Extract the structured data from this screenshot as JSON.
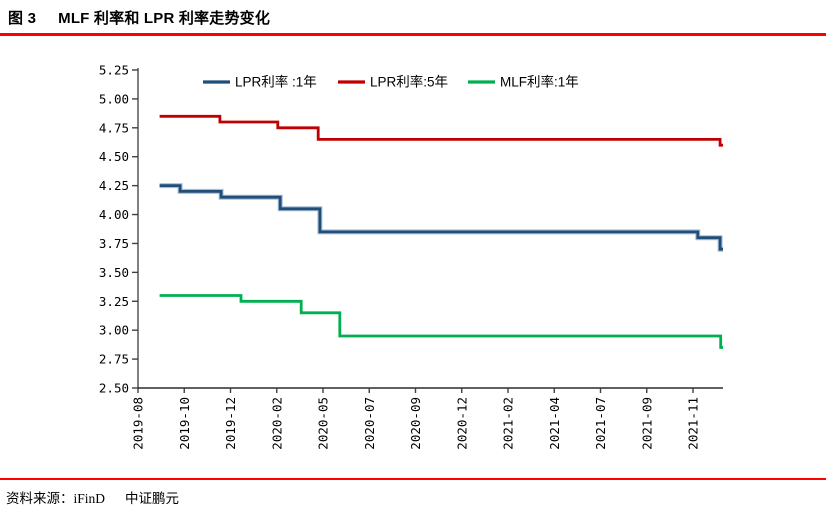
{
  "header": {
    "figure_label": "图 3",
    "title": "MLF 利率和 LPR 利率走势变化"
  },
  "footer": {
    "source": "资料来源：iFinD",
    "agency": "中证鹏元"
  },
  "accent_colors": {
    "rule_red": "#ff0000",
    "axis_gray": "#808080",
    "tick_dark": "#404040"
  },
  "chart_data": {
    "type": "line",
    "title": "MLF 利率和 LPR 利率走势变化",
    "ylabel": "",
    "xlabel": "",
    "ylim": [
      2.5,
      5.25
    ],
    "ytick_step": 0.25,
    "y_tick_labels": [
      "5.25",
      "5.00",
      "4.75",
      "4.50",
      "4.25",
      "4.00",
      "3.75",
      "3.50",
      "3.25",
      "3.00",
      "2.75",
      "2.50"
    ],
    "x_tick_labels": [
      "2019-08",
      "2019-10",
      "2019-12",
      "2020-02",
      "2020-05",
      "2020-07",
      "2020-09",
      "2020-12",
      "2021-02",
      "2021-04",
      "2021-07",
      "2021-09",
      "2021-11"
    ],
    "grid": false,
    "legend_position": "top",
    "line_style": "step-after",
    "steps_format": "[x_fraction_of_plot_width_where_level_begins, rate_percent]",
    "series": [
      {
        "name": "LPR利率 :1年",
        "color": "#1f4e79",
        "halo": "#a9bfd9",
        "levels": [
          4.25,
          4.2,
          4.15,
          4.05,
          3.85,
          3.8,
          3.7
        ],
        "steps": [
          [
            0.037,
            4.25
          ],
          [
            0.072,
            4.2
          ],
          [
            0.142,
            4.15
          ],
          [
            0.243,
            4.05
          ],
          [
            0.311,
            3.85
          ],
          [
            0.957,
            3.8
          ],
          [
            0.995,
            3.7
          ]
        ]
      },
      {
        "name": "LPR利率:5年",
        "color": "#c00000",
        "halo": null,
        "levels": [
          4.85,
          4.8,
          4.75,
          4.65,
          4.6
        ],
        "steps": [
          [
            0.037,
            4.85
          ],
          [
            0.14,
            4.8
          ],
          [
            0.239,
            4.75
          ],
          [
            0.308,
            4.65
          ],
          [
            0.995,
            4.6
          ]
        ]
      },
      {
        "name": "MLF利率:1年",
        "color": "#00b050",
        "halo": null,
        "levels": [
          3.3,
          3.25,
          3.15,
          2.95,
          2.85
        ],
        "steps": [
          [
            0.037,
            3.3
          ],
          [
            0.176,
            3.25
          ],
          [
            0.279,
            3.15
          ],
          [
            0.345,
            2.95
          ],
          [
            0.996,
            2.85
          ]
        ]
      }
    ]
  }
}
